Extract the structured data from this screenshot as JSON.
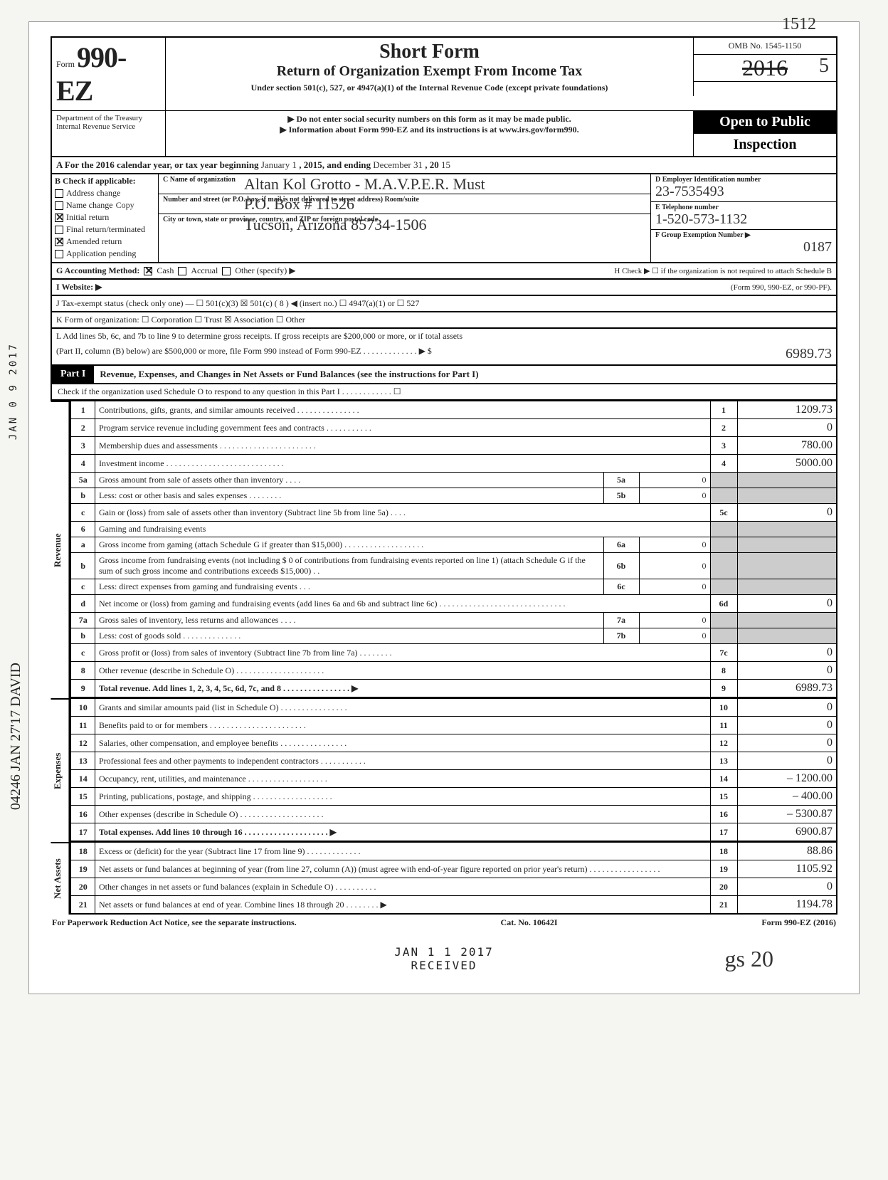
{
  "topnum": "1512",
  "form": {
    "prefix": "Form",
    "number": "990-EZ",
    "title": "Short Form",
    "subtitle": "Return of Organization Exempt From Income Tax",
    "under": "Under section 501(c), 527, or 4947(a)(1) of the Internal Revenue Code (except private foundations)",
    "nossi": "▶ Do not enter social security numbers on this form as it may be made public.",
    "info": "▶ Information about Form 990-EZ and its instructions is at www.irs.gov/form990.",
    "dept": "Department of the Treasury Internal Revenue Service",
    "omb": "OMB No. 1545-1150",
    "year_printed": "2016",
    "year_hand": "5",
    "open": "Open to Public",
    "inspection": "Inspection"
  },
  "rowA": {
    "text": "A  For the 2016 calendar year, or tax year beginning",
    "begin_hand": "January 1",
    "mid": ", 2015, and ending",
    "end_hand": "December 31",
    "yr": ", 20",
    "yr_hand": "15"
  },
  "colB": {
    "hdr": "B  Check if applicable:",
    "items": [
      {
        "label": "Address change",
        "checked": false
      },
      {
        "label": "Name change",
        "checked": false,
        "hand": "Copy"
      },
      {
        "label": "Initial return",
        "checked": true
      },
      {
        "label": "Final return/terminated",
        "checked": false
      },
      {
        "label": "Amended return",
        "checked": true
      },
      {
        "label": "Application pending",
        "checked": false
      }
    ]
  },
  "colC": {
    "name_lbl": "C  Name of organization",
    "name_hand": "Altan Kol Grotto - M.A.V.P.E.R. Must",
    "addr_lbl": "Number and street (or P.O. box, if mail is not delivered to street address)        Room/suite",
    "addr_hand": "P.O. Box #  11526",
    "city_lbl": "City or town, state or province, country, and ZIP or foreign postal code",
    "city_hand": "Tucson, Arizona           85734-1506"
  },
  "colDE": {
    "d_lbl": "D Employer Identification number",
    "d_hand": "23-7535493",
    "e_lbl": "E Telephone number",
    "e_hand": "1-520-573-1132",
    "f_lbl": "F Group Exemption Number ▶",
    "f_hand": "0187"
  },
  "rowG": {
    "g": "G  Accounting Method:",
    "cash": "Cash",
    "accrual": "Accrual",
    "other": "Other (specify) ▶",
    "h": "H  Check ▶ ☐ if the organization is not required to attach Schedule B"
  },
  "rowI": {
    "i": "I  Website: ▶",
    "form": "(Form 990, 990-EZ, or 990-PF)."
  },
  "rowJ": {
    "j": "J  Tax-exempt status (check only one) —  ☐ 501(c)(3)   ☒ 501(c) ( 8 ) ◀ (insert no.)  ☐ 4947(a)(1) or   ☐ 527"
  },
  "rowK": {
    "k": "K  Form of organization:   ☐ Corporation    ☐ Trust    ☒ Association    ☐ Other"
  },
  "rowL": {
    "l1": "L  Add lines 5b, 6c, and 7b to line 9 to determine gross receipts. If gross receipts are $200,000 or more, or if total assets",
    "l2": "(Part II, column (B) below) are $500,000 or more, file Form 990 instead of Form 990-EZ . . . . . . . . . . . . . ▶  $",
    "l_hand": "6989.73"
  },
  "part1": {
    "tab": "Part I",
    "title": "Revenue, Expenses, and Changes in Net Assets or Fund Balances (see the instructions for Part I)",
    "sub": "Check if the organization used Schedule O to respond to any question in this Part I . . . . . . . . . . . . ☐"
  },
  "sidelabels": {
    "rev": "Revenue",
    "exp": "Expenses",
    "net": "Net Assets"
  },
  "lines": [
    {
      "n": "1",
      "d": "Contributions, gifts, grants, and similar amounts received . . . . . . . . . . . . . . .",
      "r": "1",
      "v": "1209.73"
    },
    {
      "n": "2",
      "d": "Program service revenue including government fees and contracts . . . . . . . . . . .",
      "r": "2",
      "v": "0"
    },
    {
      "n": "3",
      "d": "Membership dues and assessments . . . . . . . . . . . . . . . . . . . . . . .",
      "r": "3",
      "v": "780.00"
    },
    {
      "n": "4",
      "d": "Investment income . . . . . . . . . . . . . . . . . . . . . . . . . . . .",
      "r": "4",
      "v": "5000.00"
    },
    {
      "n": "5a",
      "d": "Gross amount from sale of assets other than inventory . . . .",
      "side": "5a",
      "sv": "0",
      "shade": true
    },
    {
      "n": "b",
      "d": "Less: cost or other basis and sales expenses . . . . . . . .",
      "side": "5b",
      "sv": "0",
      "shade": true
    },
    {
      "n": "c",
      "d": "Gain or (loss) from sale of assets other than inventory (Subtract line 5b from line 5a) . . . .",
      "r": "5c",
      "v": "0"
    },
    {
      "n": "6",
      "d": "Gaming and fundraising events",
      "shade": true
    },
    {
      "n": "a",
      "d": "Gross income from gaming (attach Schedule G if greater than $15,000) . . . . . . . . . . . . . . . . . . .",
      "side": "6a",
      "sv": "0",
      "shade": true
    },
    {
      "n": "b",
      "d": "Gross income from fundraising events (not including  $    0         of contributions from fundraising events reported on line 1) (attach Schedule G if the sum of such gross income and contributions exceeds $15,000) . .",
      "side": "6b",
      "sv": "0",
      "shade": true
    },
    {
      "n": "c",
      "d": "Less: direct expenses from gaming and fundraising events . . .",
      "side": "6c",
      "sv": "0",
      "shade": true
    },
    {
      "n": "d",
      "d": "Net income or (loss) from gaming and fundraising events (add lines 6a and 6b and subtract line 6c) . . . . . . . . . . . . . . . . . . . . . . . . . . . . . .",
      "r": "6d",
      "v": "0"
    },
    {
      "n": "7a",
      "d": "Gross sales of inventory, less returns and allowances . . . .",
      "side": "7a",
      "sv": "0",
      "shade": true
    },
    {
      "n": "b",
      "d": "Less: cost of goods sold . . . . . . . . . . . . . .",
      "side": "7b",
      "sv": "0",
      "shade": true
    },
    {
      "n": "c",
      "d": "Gross profit or (loss) from sales of inventory (Subtract line 7b from line 7a) . . . . . . . .",
      "r": "7c",
      "v": "0"
    },
    {
      "n": "8",
      "d": "Other revenue (describe in Schedule O) . . . . . . . . . . . . . . . . . . . . .",
      "r": "8",
      "v": "0"
    },
    {
      "n": "9",
      "d": "Total revenue. Add lines 1, 2, 3, 4, 5c, 6d, 7c, and 8 . . . . . . . . . . . . . . . . ▶",
      "r": "9",
      "v": "6989.73",
      "bold": true
    }
  ],
  "exp_lines": [
    {
      "n": "10",
      "d": "Grants and similar amounts paid (list in Schedule O) . . . . . . . . . . . . . . . .",
      "r": "10",
      "v": "0"
    },
    {
      "n": "11",
      "d": "Benefits paid to or for members . . . . . . . . . . . . . . . . . . . . . . .",
      "r": "11",
      "v": "0"
    },
    {
      "n": "12",
      "d": "Salaries, other compensation, and employee benefits . . . . . . . . . . . . . . . .",
      "r": "12",
      "v": "0"
    },
    {
      "n": "13",
      "d": "Professional fees and other payments to independent contractors . . . . . . . . . . .",
      "r": "13",
      "v": "0"
    },
    {
      "n": "14",
      "d": "Occupancy, rent, utilities, and maintenance . . . . . . . . . . . . . . . . . . .",
      "r": "14",
      "v": "– 1200.00"
    },
    {
      "n": "15",
      "d": "Printing, publications, postage, and shipping . . . . . . . . . . . . . . . . . . .",
      "r": "15",
      "v": "– 400.00"
    },
    {
      "n": "16",
      "d": "Other expenses (describe in Schedule O) . . . . . . . . . . . . . . . . . . . .",
      "r": "16",
      "v": "– 5300.87"
    },
    {
      "n": "17",
      "d": "Total expenses. Add lines 10 through 16 . . . . . . . . . . . . . . . . . . . . ▶",
      "r": "17",
      "v": "6900.87",
      "bold": true
    }
  ],
  "net_lines": [
    {
      "n": "18",
      "d": "Excess or (deficit) for the year (Subtract line 17 from line 9) . . . . . . . . . . . . .",
      "r": "18",
      "v": "88.86"
    },
    {
      "n": "19",
      "d": "Net assets or fund balances at beginning of year (from line 27, column (A)) (must agree with end-of-year figure reported on prior year's return) . . . . . . . . . . . . . . . . .",
      "r": "19",
      "v": "1105.92"
    },
    {
      "n": "20",
      "d": "Other changes in net assets or fund balances (explain in Schedule O) . . . . . . . . . .",
      "r": "20",
      "v": "0"
    },
    {
      "n": "21",
      "d": "Net assets or fund balances at end of year. Combine lines 18 through 20 . . . . . . . . ▶",
      "r": "21",
      "v": "1194.78"
    }
  ],
  "footer": {
    "left": "For Paperwork Reduction Act Notice, see the separate instructions.",
    "mid": "Cat. No. 10642I",
    "right": "Form 990-EZ (2016)"
  },
  "stamps": {
    "jan": "JAN 1 1 2017",
    "recv": "RECEIVED",
    "side": "JAN 0 9 2017",
    "side2": "04246 JAN 27'17 DAVID",
    "init": "gs         20"
  }
}
